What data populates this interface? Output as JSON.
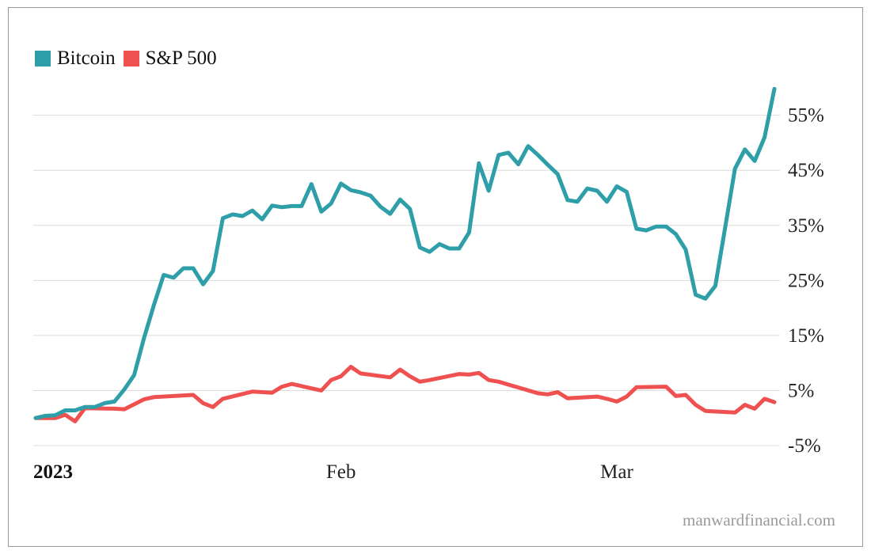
{
  "chart_data": {
    "type": "line",
    "title": "",
    "xlabel": "",
    "ylabel": "",
    "ylim": [
      -5,
      62
    ],
    "y_ticks": [
      "55%",
      "45%",
      "35%",
      "25%",
      "15%",
      "5%",
      "-5%"
    ],
    "y_tick_values": [
      55,
      45,
      35,
      25,
      15,
      5,
      -5
    ],
    "x_tick_labels": [
      {
        "label": "2023",
        "date": "2023-01-01"
      },
      {
        "label": "Feb",
        "date": "2023-02-01"
      },
      {
        "label": "Mar",
        "date": "2023-03-01"
      }
    ],
    "grid": true,
    "legend_position": "top-left",
    "series": [
      {
        "name": "Bitcoin",
        "color": "#2e9fa8",
        "points": [
          [
            "2023-01-01",
            0
          ],
          [
            "2023-01-02",
            0.4
          ],
          [
            "2023-01-03",
            0.5
          ],
          [
            "2023-01-04",
            1.4
          ],
          [
            "2023-01-05",
            1.4
          ],
          [
            "2023-01-06",
            2.0
          ],
          [
            "2023-01-07",
            2.0
          ],
          [
            "2023-01-08",
            2.7
          ],
          [
            "2023-01-09",
            3.0
          ],
          [
            "2023-01-10",
            5.2
          ],
          [
            "2023-01-11",
            7.8
          ],
          [
            "2023-01-12",
            14.5
          ],
          [
            "2023-01-13",
            20.5
          ],
          [
            "2023-01-14",
            26.0
          ],
          [
            "2023-01-15",
            25.5
          ],
          [
            "2023-01-16",
            27.2
          ],
          [
            "2023-01-17",
            27.2
          ],
          [
            "2023-01-18",
            24.3
          ],
          [
            "2023-01-19",
            26.7
          ],
          [
            "2023-01-20",
            36.3
          ],
          [
            "2023-01-21",
            37.0
          ],
          [
            "2023-01-22",
            36.7
          ],
          [
            "2023-01-23",
            37.7
          ],
          [
            "2023-01-24",
            36.1
          ],
          [
            "2023-01-25",
            38.6
          ],
          [
            "2023-01-26",
            38.3
          ],
          [
            "2023-01-27",
            38.5
          ],
          [
            "2023-01-28",
            38.5
          ],
          [
            "2023-01-29",
            42.5
          ],
          [
            "2023-01-30",
            37.5
          ],
          [
            "2023-01-31",
            39.0
          ],
          [
            "2023-02-01",
            42.6
          ],
          [
            "2023-02-02",
            41.4
          ],
          [
            "2023-02-03",
            41.0
          ],
          [
            "2023-02-04",
            40.4
          ],
          [
            "2023-02-05",
            38.4
          ],
          [
            "2023-02-06",
            37.1
          ],
          [
            "2023-02-07",
            39.7
          ],
          [
            "2023-02-08",
            38.0
          ],
          [
            "2023-02-09",
            31.0
          ],
          [
            "2023-02-10",
            30.2
          ],
          [
            "2023-02-11",
            31.6
          ],
          [
            "2023-02-12",
            30.8
          ],
          [
            "2023-02-13",
            30.8
          ],
          [
            "2023-02-14",
            33.7
          ],
          [
            "2023-02-15",
            46.3
          ],
          [
            "2023-02-16",
            41.3
          ],
          [
            "2023-02-17",
            47.8
          ],
          [
            "2023-02-18",
            48.2
          ],
          [
            "2023-02-19",
            46.1
          ],
          [
            "2023-02-20",
            49.4
          ],
          [
            "2023-02-21",
            47.8
          ],
          [
            "2023-02-22",
            46.0
          ],
          [
            "2023-02-23",
            44.3
          ],
          [
            "2023-02-24",
            39.6
          ],
          [
            "2023-02-25",
            39.3
          ],
          [
            "2023-02-26",
            41.7
          ],
          [
            "2023-02-27",
            41.3
          ],
          [
            "2023-02-28",
            39.3
          ],
          [
            "2023-03-01",
            42.1
          ],
          [
            "2023-03-02",
            41.1
          ],
          [
            "2023-03-03",
            34.4
          ],
          [
            "2023-03-04",
            34.1
          ],
          [
            "2023-03-05",
            34.8
          ],
          [
            "2023-03-06",
            34.8
          ],
          [
            "2023-03-07",
            33.4
          ],
          [
            "2023-03-08",
            30.6
          ],
          [
            "2023-03-09",
            22.4
          ],
          [
            "2023-03-10",
            21.7
          ],
          [
            "2023-03-11",
            24.0
          ],
          [
            "2023-03-12",
            34.6
          ],
          [
            "2023-03-13",
            45.3
          ],
          [
            "2023-03-14",
            48.8
          ],
          [
            "2023-03-15",
            46.7
          ],
          [
            "2023-03-16",
            51.0
          ],
          [
            "2023-03-17",
            59.8
          ]
        ]
      },
      {
        "name": "S&P 500",
        "color": "#ef5151",
        "points": [
          [
            "2023-01-01",
            0
          ],
          [
            "2023-01-03",
            0
          ],
          [
            "2023-01-04",
            0.6
          ],
          [
            "2023-01-05",
            -0.6
          ],
          [
            "2023-01-06",
            1.8
          ],
          [
            "2023-01-09",
            1.7
          ],
          [
            "2023-01-10",
            1.6
          ],
          [
            "2023-01-12",
            3.4
          ],
          [
            "2023-01-13",
            3.8
          ],
          [
            "2023-01-17",
            4.2
          ],
          [
            "2023-01-18",
            2.7
          ],
          [
            "2023-01-19",
            2.0
          ],
          [
            "2023-01-20",
            3.5
          ],
          [
            "2023-01-23",
            4.8
          ],
          [
            "2023-01-24",
            4.7
          ],
          [
            "2023-01-25",
            4.6
          ],
          [
            "2023-01-26",
            5.7
          ],
          [
            "2023-01-27",
            6.2
          ],
          [
            "2023-01-30",
            5.0
          ],
          [
            "2023-01-31",
            6.9
          ],
          [
            "2023-02-01",
            7.6
          ],
          [
            "2023-02-02",
            9.3
          ],
          [
            "2023-02-03",
            8.1
          ],
          [
            "2023-02-06",
            7.4
          ],
          [
            "2023-02-07",
            8.8
          ],
          [
            "2023-02-08",
            7.6
          ],
          [
            "2023-02-09",
            6.6
          ],
          [
            "2023-02-10",
            6.9
          ],
          [
            "2023-02-13",
            8.0
          ],
          [
            "2023-02-14",
            7.9
          ],
          [
            "2023-02-15",
            8.2
          ],
          [
            "2023-02-16",
            6.9
          ],
          [
            "2023-02-17",
            6.6
          ],
          [
            "2023-02-21",
            4.5
          ],
          [
            "2023-02-22",
            4.3
          ],
          [
            "2023-02-23",
            4.7
          ],
          [
            "2023-02-24",
            3.6
          ],
          [
            "2023-02-27",
            3.9
          ],
          [
            "2023-02-28",
            3.5
          ],
          [
            "2023-03-01",
            3.0
          ],
          [
            "2023-03-02",
            3.9
          ],
          [
            "2023-03-03",
            5.6
          ],
          [
            "2023-03-06",
            5.7
          ],
          [
            "2023-03-07",
            4.0
          ],
          [
            "2023-03-08",
            4.2
          ],
          [
            "2023-03-09",
            2.4
          ],
          [
            "2023-03-10",
            1.3
          ],
          [
            "2023-03-13",
            1.0
          ],
          [
            "2023-03-14",
            2.4
          ],
          [
            "2023-03-15",
            1.7
          ],
          [
            "2023-03-16",
            3.5
          ],
          [
            "2023-03-17",
            2.9
          ]
        ]
      }
    ]
  },
  "legend": {
    "items": [
      {
        "label": "Bitcoin",
        "color": "#2e9fa8"
      },
      {
        "label": "S&P 500",
        "color": "#ef5151"
      }
    ]
  },
  "watermark": "manwardfinancial.com"
}
